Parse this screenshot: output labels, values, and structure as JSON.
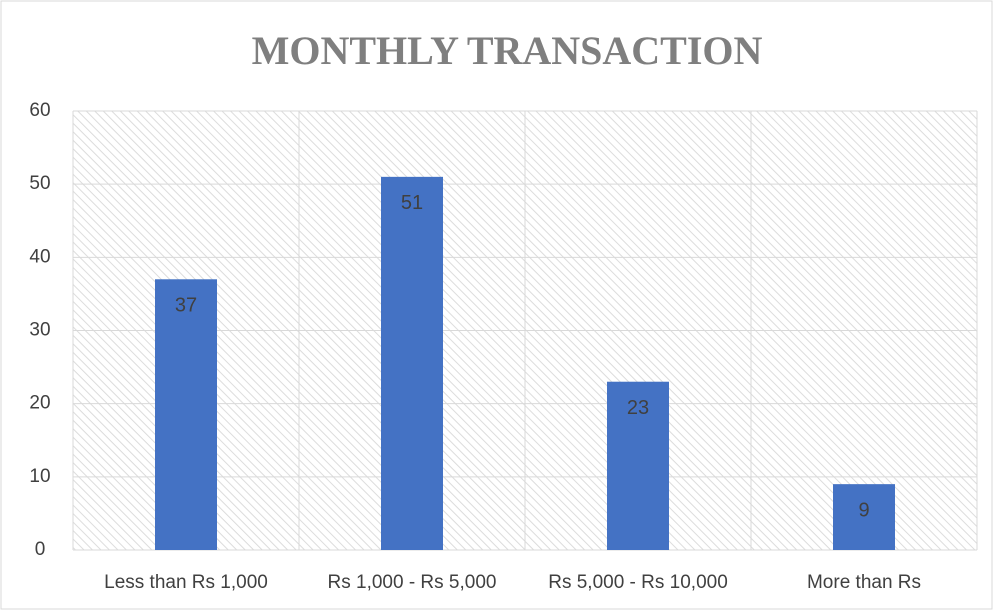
{
  "chart_data": {
    "type": "bar",
    "title": "MONTHLY TRANSACTION",
    "categories": [
      "Less than Rs 1,000",
      "Rs 1,000 - Rs 5,000",
      "Rs 5,000 - Rs 10,000",
      "More than Rs"
    ],
    "values": [
      37,
      51,
      23,
      9
    ],
    "color": "#4472c4",
    "ylim": [
      0,
      60
    ],
    "yticks": [
      0,
      10,
      20,
      30,
      40,
      50,
      60
    ],
    "grid": true
  }
}
